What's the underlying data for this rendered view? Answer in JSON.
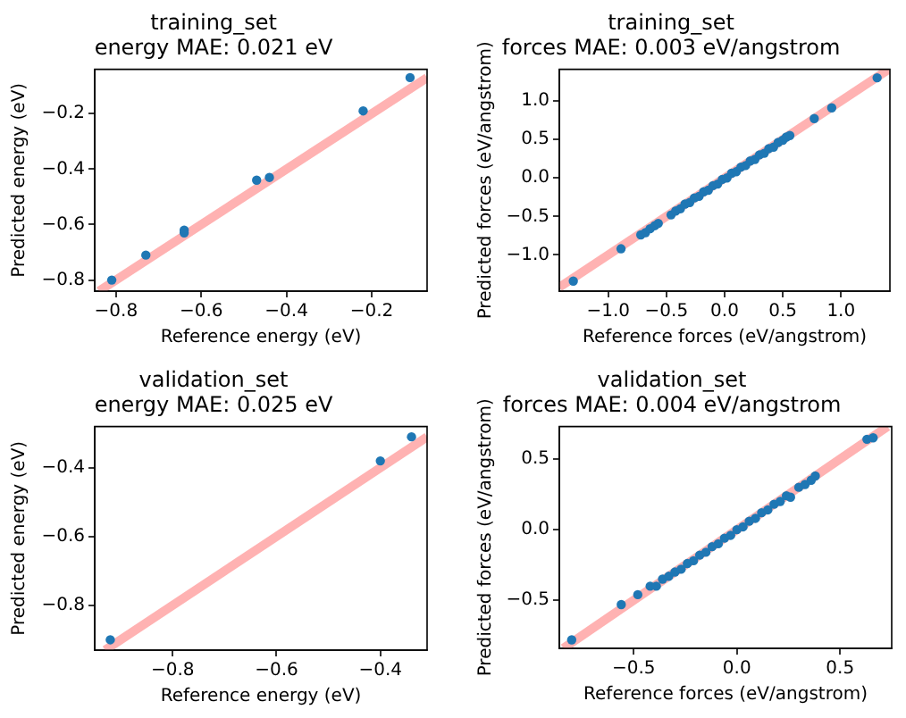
{
  "chart_data": [
    {
      "type": "scatter",
      "title": "training_set",
      "subtitle": "energy MAE: 0.021 eV",
      "xlabel": "Reference energy (eV)",
      "ylabel": "Predicted energy (eV)",
      "xlim": [
        -0.85,
        -0.07
      ],
      "ylim": [
        -0.84,
        -0.04
      ],
      "xticks": [
        {
          "value": -0.8,
          "label": "−0.8"
        },
        {
          "value": -0.6,
          "label": "−0.6"
        },
        {
          "value": -0.4,
          "label": "−0.4"
        },
        {
          "value": -0.2,
          "label": "−0.2"
        }
      ],
      "yticks": [
        {
          "value": -0.8,
          "label": "−0.8"
        },
        {
          "value": -0.6,
          "label": "−0.6"
        },
        {
          "value": -0.4,
          "label": "−0.4"
        },
        {
          "value": -0.2,
          "label": "−0.2"
        }
      ],
      "marker": "circle",
      "series": [
        {
          "type": "line",
          "color": "#ffb2b2",
          "marker": "none",
          "x": [
            -0.84,
            -0.07
          ],
          "values": [
            -0.84,
            -0.07
          ]
        },
        {
          "type": "scatter",
          "color": "#1f77b4",
          "x": [
            -0.81,
            -0.73,
            -0.64,
            -0.64,
            -0.47,
            -0.44,
            -0.22,
            -0.11
          ],
          "values": [
            -0.8,
            -0.71,
            -0.63,
            -0.62,
            -0.44,
            -0.43,
            -0.19,
            -0.07
          ]
        }
      ]
    },
    {
      "type": "scatter",
      "title": "training_set",
      "subtitle": "forces MAE: 0.003 eV/angstrom",
      "xlabel": "Reference forces (eV/angstrom)",
      "ylabel": "Predicted forces (eV/angstrom)",
      "xlim": [
        -1.42,
        1.42
      ],
      "ylim": [
        -1.47,
        1.41
      ],
      "xticks": [
        {
          "value": -1,
          "label": "−1.0"
        },
        {
          "value": -0.5,
          "label": "−0.5"
        },
        {
          "value": 0,
          "label": "0.0"
        },
        {
          "value": 0.5,
          "label": "0.5"
        },
        {
          "value": 1,
          "label": "1.0"
        }
      ],
      "yticks": [
        {
          "value": -1,
          "label": "−1.0"
        },
        {
          "value": -0.5,
          "label": "−0.5"
        },
        {
          "value": 0,
          "label": "0.0"
        },
        {
          "value": 0.5,
          "label": "0.5"
        },
        {
          "value": 1,
          "label": "1.0"
        }
      ],
      "marker": "circle",
      "series": [
        {
          "type": "line",
          "color": "#ffb2b2",
          "marker": "none",
          "x": [
            -1.42,
            1.41
          ],
          "values": [
            -1.42,
            1.41
          ]
        },
        {
          "type": "scatter",
          "color": "#1f77b4",
          "x": [
            -1.3,
            -0.89,
            -0.72,
            -0.68,
            -0.64,
            -0.6,
            -0.57,
            -0.46,
            -0.42,
            -0.38,
            -0.34,
            -0.3,
            -0.26,
            -0.22,
            -0.18,
            -0.14,
            -0.1,
            -0.06,
            -0.02,
            0.02,
            0.06,
            0.1,
            0.14,
            0.18,
            0.22,
            0.26,
            0.3,
            0.34,
            0.38,
            0.42,
            0.46,
            0.5,
            0.53,
            0.56,
            0.77,
            0.92,
            1.31
          ],
          "values": [
            -1.34,
            -0.92,
            -0.74,
            -0.71,
            -0.66,
            -0.62,
            -0.59,
            -0.48,
            -0.43,
            -0.4,
            -0.34,
            -0.32,
            -0.26,
            -0.24,
            -0.18,
            -0.16,
            -0.1,
            -0.08,
            -0.02,
            0,
            0.06,
            0.08,
            0.14,
            0.16,
            0.22,
            0.24,
            0.3,
            0.32,
            0.38,
            0.4,
            0.46,
            0.49,
            0.53,
            0.55,
            0.77,
            0.91,
            1.3
          ]
        }
      ]
    },
    {
      "type": "scatter",
      "title": "validation_set",
      "subtitle": "energy MAE: 0.025 eV",
      "xlabel": "Reference energy (eV)",
      "ylabel": "Predicted energy (eV)",
      "xlim": [
        -0.95,
        -0.31
      ],
      "ylim": [
        -0.93,
        -0.28
      ],
      "xticks": [
        {
          "value": -0.8,
          "label": "−0.8"
        },
        {
          "value": -0.6,
          "label": "−0.6"
        },
        {
          "value": -0.4,
          "label": "−0.4"
        }
      ],
      "yticks": [
        {
          "value": -0.8,
          "label": "−0.8"
        },
        {
          "value": -0.6,
          "label": "−0.6"
        },
        {
          "value": -0.4,
          "label": "−0.4"
        }
      ],
      "marker": "circle",
      "series": [
        {
          "type": "line",
          "color": "#ffb2b2",
          "marker": "none",
          "x": [
            -0.93,
            -0.31
          ],
          "values": [
            -0.93,
            -0.31
          ]
        },
        {
          "type": "scatter",
          "color": "#1f77b4",
          "x": [
            -0.92,
            -0.4,
            -0.34
          ],
          "values": [
            -0.9,
            -0.38,
            -0.31
          ]
        }
      ]
    },
    {
      "type": "scatter",
      "title": "validation_set",
      "subtitle": "forces MAE: 0.004 eV/angstrom",
      "xlabel": "Reference forces (eV/angstrom)",
      "ylabel": "Predicted forces (eV/angstrom)",
      "xlim": [
        -0.86,
        0.75
      ],
      "ylim": [
        -0.84,
        0.73
      ],
      "xticks": [
        {
          "value": -0.5,
          "label": "−0.5"
        },
        {
          "value": 0,
          "label": "0.0"
        },
        {
          "value": 0.5,
          "label": "0.5"
        }
      ],
      "yticks": [
        {
          "value": -0.5,
          "label": "−0.5"
        },
        {
          "value": 0,
          "label": "0.0"
        },
        {
          "value": 0.5,
          "label": "0.5"
        }
      ],
      "marker": "circle",
      "series": [
        {
          "type": "line",
          "color": "#ffb2b2",
          "marker": "none",
          "x": [
            -0.84,
            0.73
          ],
          "values": [
            -0.84,
            0.73
          ]
        },
        {
          "type": "scatter",
          "color": "#1f77b4",
          "x": [
            -0.8,
            -0.56,
            -0.48,
            -0.42,
            -0.39,
            -0.36,
            -0.33,
            -0.3,
            -0.27,
            -0.24,
            -0.21,
            -0.18,
            -0.15,
            -0.12,
            -0.09,
            -0.06,
            -0.03,
            0,
            0.03,
            0.06,
            0.09,
            0.12,
            0.15,
            0.18,
            0.21,
            0.24,
            0.26,
            0.3,
            0.33,
            0.36,
            0.38,
            0.63,
            0.66
          ],
          "values": [
            -0.78,
            -0.53,
            -0.46,
            -0.4,
            -0.4,
            -0.35,
            -0.33,
            -0.3,
            -0.28,
            -0.24,
            -0.22,
            -0.18,
            -0.16,
            -0.12,
            -0.1,
            -0.06,
            -0.04,
            0,
            0.02,
            0.06,
            0.08,
            0.12,
            0.14,
            0.18,
            0.2,
            0.24,
            0.23,
            0.3,
            0.32,
            0.35,
            0.38,
            0.64,
            0.65
          ]
        }
      ]
    }
  ]
}
